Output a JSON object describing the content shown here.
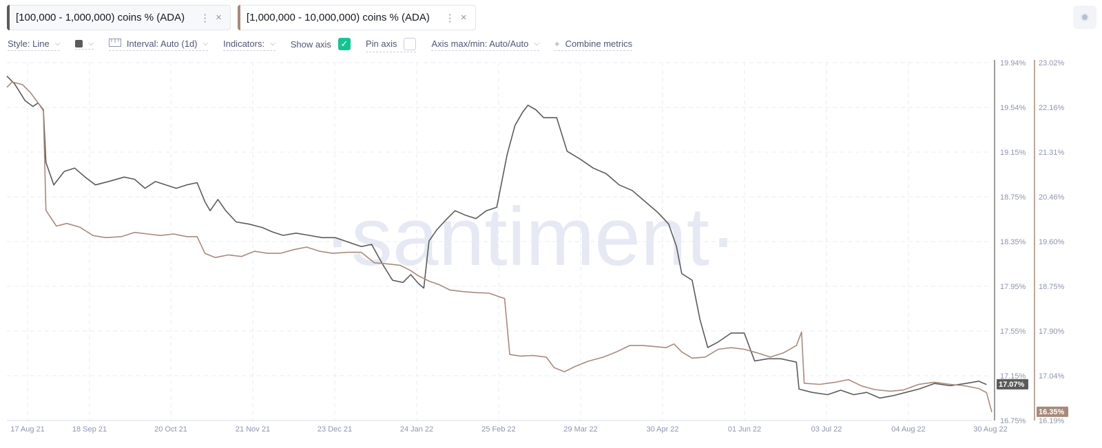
{
  "tabs": [
    {
      "label": "[100,000 - 1,000,000) coins % (ADA)",
      "color": "#5a5a5a"
    },
    {
      "label": "[1,000,000 - 10,000,000) coins % (ADA)",
      "color": "#a8897c"
    }
  ],
  "tab_icons": {
    "menu": "⋮",
    "close": "×"
  },
  "toolbar": {
    "style": "Style: Line",
    "interval": "Interval: Auto (1d)",
    "indicators": "Indicators:",
    "show_axis": "Show axis",
    "pin_axis": "Pin axis",
    "axis_minmax": "Axis max/min: Auto/Auto",
    "combine": "Combine metrics",
    "plus": "+",
    "chevron": "⌵",
    "check": "✓"
  },
  "watermark": "·santiment·",
  "colors": {
    "series1": "#5a5a5a",
    "series2": "#a8897c",
    "accent": "#14c393"
  },
  "chart_data": {
    "type": "line",
    "x_ticks": [
      "17 Aug 21",
      "18 Sep 21",
      "20 Oct 21",
      "21 Nov 21",
      "23 Dec 21",
      "24 Jan 22",
      "25 Feb 22",
      "29 Mar 22",
      "30 Apr 22",
      "01 Jun 22",
      "03 Jul 22",
      "04 Aug 22",
      "30 Aug 22"
    ],
    "x_range": [
      "2021-08-17",
      "2022-08-30"
    ],
    "axis1": {
      "ticks": [
        "19.94%",
        "19.54%",
        "19.15%",
        "18.75%",
        "18.35%",
        "17.95%",
        "17.55%",
        "17.15%",
        "16.75%"
      ],
      "min": 16.75,
      "max": 19.94
    },
    "axis2": {
      "ticks": [
        "23.02%",
        "22.16%",
        "21.31%",
        "20.46%",
        "19.60%",
        "18.75%",
        "17.90%",
        "17.04%",
        "16.19%"
      ],
      "min": 16.19,
      "max": 23.02
    },
    "last_labels": {
      "series1": "17.07%",
      "series2": "16.35%"
    },
    "series": [
      {
        "name": "[100,000 - 1,000,000) coins % (ADA)",
        "axis": 1,
        "points": [
          [
            "2021-08-17",
            19.82
          ],
          [
            "2021-08-20",
            19.75
          ],
          [
            "2021-08-24",
            19.6
          ],
          [
            "2021-08-27",
            19.55
          ],
          [
            "2021-08-29",
            19.58
          ],
          [
            "2021-08-31",
            19.52
          ],
          [
            "2021-09-01",
            19.05
          ],
          [
            "2021-09-04",
            18.85
          ],
          [
            "2021-09-08",
            18.97
          ],
          [
            "2021-09-12",
            19.0
          ],
          [
            "2021-09-16",
            18.92
          ],
          [
            "2021-09-20",
            18.85
          ],
          [
            "2021-09-25",
            18.88
          ],
          [
            "2021-10-01",
            18.92
          ],
          [
            "2021-10-05",
            18.9
          ],
          [
            "2021-10-09",
            18.82
          ],
          [
            "2021-10-13",
            18.88
          ],
          [
            "2021-10-17",
            18.85
          ],
          [
            "2021-10-21",
            18.82
          ],
          [
            "2021-10-25",
            18.85
          ],
          [
            "2021-10-29",
            18.87
          ],
          [
            "2021-11-01",
            18.7
          ],
          [
            "2021-11-03",
            18.62
          ],
          [
            "2021-11-06",
            18.72
          ],
          [
            "2021-11-09",
            18.62
          ],
          [
            "2021-11-13",
            18.52
          ],
          [
            "2021-11-18",
            18.5
          ],
          [
            "2021-11-23",
            18.47
          ],
          [
            "2021-11-27",
            18.43
          ],
          [
            "2021-12-01",
            18.4
          ],
          [
            "2021-12-06",
            18.42
          ],
          [
            "2021-12-11",
            18.4
          ],
          [
            "2021-12-16",
            18.38
          ],
          [
            "2021-12-21",
            18.38
          ],
          [
            "2021-12-26",
            18.34
          ],
          [
            "2021-12-31",
            18.3
          ],
          [
            "2022-01-04",
            18.32
          ],
          [
            "2022-01-08",
            18.15
          ],
          [
            "2022-01-12",
            18.0
          ],
          [
            "2022-01-16",
            17.98
          ],
          [
            "2022-01-19",
            18.05
          ],
          [
            "2022-01-22",
            17.97
          ],
          [
            "2022-01-24",
            17.93
          ],
          [
            "2022-01-26",
            18.35
          ],
          [
            "2022-01-29",
            18.45
          ],
          [
            "2022-02-02",
            18.55
          ],
          [
            "2022-02-05",
            18.62
          ],
          [
            "2022-02-09",
            18.58
          ],
          [
            "2022-02-13",
            18.55
          ],
          [
            "2022-02-17",
            18.62
          ],
          [
            "2022-02-21",
            18.65
          ],
          [
            "2022-02-25",
            19.12
          ],
          [
            "2022-02-28",
            19.38
          ],
          [
            "2022-03-03",
            19.5
          ],
          [
            "2022-03-05",
            19.56
          ],
          [
            "2022-03-08",
            19.52
          ],
          [
            "2022-03-11",
            19.45
          ],
          [
            "2022-03-16",
            19.45
          ],
          [
            "2022-03-20",
            19.15
          ],
          [
            "2022-03-25",
            19.08
          ],
          [
            "2022-03-30",
            19.0
          ],
          [
            "2022-04-04",
            18.95
          ],
          [
            "2022-04-09",
            18.85
          ],
          [
            "2022-04-14",
            18.8
          ],
          [
            "2022-04-19",
            18.7
          ],
          [
            "2022-04-24",
            18.6
          ],
          [
            "2022-04-28",
            18.5
          ],
          [
            "2022-05-01",
            18.3
          ],
          [
            "2022-05-03",
            18.06
          ],
          [
            "2022-05-07",
            18.0
          ],
          [
            "2022-05-10",
            17.65
          ],
          [
            "2022-05-13",
            17.4
          ],
          [
            "2022-05-17",
            17.45
          ],
          [
            "2022-05-22",
            17.53
          ],
          [
            "2022-05-27",
            17.53
          ],
          [
            "2022-05-31",
            17.28
          ],
          [
            "2022-06-05",
            17.3
          ],
          [
            "2022-06-10",
            17.3
          ],
          [
            "2022-06-16",
            17.27
          ],
          [
            "2022-06-17",
            17.03
          ],
          [
            "2022-06-22",
            17.0
          ],
          [
            "2022-06-28",
            16.98
          ],
          [
            "2022-07-03",
            17.02
          ],
          [
            "2022-07-08",
            16.98
          ],
          [
            "2022-07-13",
            17.0
          ],
          [
            "2022-07-18",
            16.95
          ],
          [
            "2022-07-23",
            16.97
          ],
          [
            "2022-07-28",
            17.0
          ],
          [
            "2022-08-02",
            17.03
          ],
          [
            "2022-08-08",
            17.08
          ],
          [
            "2022-08-14",
            17.06
          ],
          [
            "2022-08-20",
            17.08
          ],
          [
            "2022-08-25",
            17.1
          ],
          [
            "2022-08-28",
            17.07
          ]
        ]
      },
      {
        "name": "[1,000,000 - 10,000,000) coins % (ADA)",
        "axis": 2,
        "points": [
          [
            "2021-08-17",
            22.55
          ],
          [
            "2021-08-19",
            22.65
          ],
          [
            "2021-08-23",
            22.6
          ],
          [
            "2021-08-26",
            22.45
          ],
          [
            "2021-08-29",
            22.25
          ],
          [
            "2021-08-31",
            22.1
          ],
          [
            "2021-09-01",
            20.2
          ],
          [
            "2021-09-05",
            19.9
          ],
          [
            "2021-09-09",
            19.95
          ],
          [
            "2021-09-14",
            19.88
          ],
          [
            "2021-09-19",
            19.72
          ],
          [
            "2021-09-24",
            19.68
          ],
          [
            "2021-09-30",
            19.7
          ],
          [
            "2021-10-05",
            19.78
          ],
          [
            "2021-10-10",
            19.75
          ],
          [
            "2021-10-15",
            19.72
          ],
          [
            "2021-10-20",
            19.75
          ],
          [
            "2021-10-25",
            19.7
          ],
          [
            "2021-10-29",
            19.7
          ],
          [
            "2021-11-01",
            19.38
          ],
          [
            "2021-11-05",
            19.3
          ],
          [
            "2021-11-10",
            19.35
          ],
          [
            "2021-11-15",
            19.32
          ],
          [
            "2021-11-20",
            19.42
          ],
          [
            "2021-11-25",
            19.38
          ],
          [
            "2021-11-30",
            19.38
          ],
          [
            "2021-12-05",
            19.45
          ],
          [
            "2021-12-10",
            19.5
          ],
          [
            "2021-12-15",
            19.42
          ],
          [
            "2021-12-20",
            19.38
          ],
          [
            "2021-12-26",
            19.4
          ],
          [
            "2021-12-31",
            19.4
          ],
          [
            "2022-01-05",
            19.2
          ],
          [
            "2022-01-10",
            19.18
          ],
          [
            "2022-01-15",
            19.15
          ],
          [
            "2022-01-19",
            19.05
          ],
          [
            "2022-01-22",
            18.95
          ],
          [
            "2022-01-26",
            18.85
          ],
          [
            "2022-01-30",
            18.78
          ],
          [
            "2022-02-03",
            18.68
          ],
          [
            "2022-02-08",
            18.65
          ],
          [
            "2022-02-13",
            18.63
          ],
          [
            "2022-02-18",
            18.62
          ],
          [
            "2022-02-22",
            18.55
          ],
          [
            "2022-02-24",
            18.52
          ],
          [
            "2022-02-26",
            17.45
          ],
          [
            "2022-03-02",
            17.42
          ],
          [
            "2022-03-07",
            17.43
          ],
          [
            "2022-03-12",
            17.4
          ],
          [
            "2022-03-15",
            17.2
          ],
          [
            "2022-03-19",
            17.12
          ],
          [
            "2022-03-23",
            17.22
          ],
          [
            "2022-03-28",
            17.32
          ],
          [
            "2022-04-03",
            17.4
          ],
          [
            "2022-04-08",
            17.5
          ],
          [
            "2022-04-13",
            17.62
          ],
          [
            "2022-04-18",
            17.62
          ],
          [
            "2022-04-23",
            17.6
          ],
          [
            "2022-04-27",
            17.58
          ],
          [
            "2022-04-30",
            17.65
          ],
          [
            "2022-05-03",
            17.5
          ],
          [
            "2022-05-07",
            17.38
          ],
          [
            "2022-05-12",
            17.4
          ],
          [
            "2022-05-17",
            17.55
          ],
          [
            "2022-05-22",
            17.58
          ],
          [
            "2022-05-27",
            17.55
          ],
          [
            "2022-06-01",
            17.48
          ],
          [
            "2022-06-06",
            17.4
          ],
          [
            "2022-06-11",
            17.48
          ],
          [
            "2022-06-16",
            17.62
          ],
          [
            "2022-06-18",
            17.88
          ],
          [
            "2022-06-19",
            16.9
          ],
          [
            "2022-06-25",
            16.88
          ],
          [
            "2022-07-01",
            16.92
          ],
          [
            "2022-07-06",
            16.97
          ],
          [
            "2022-07-11",
            16.85
          ],
          [
            "2022-07-16",
            16.78
          ],
          [
            "2022-07-22",
            16.75
          ],
          [
            "2022-07-27",
            16.77
          ],
          [
            "2022-08-02",
            16.88
          ],
          [
            "2022-08-08",
            16.92
          ],
          [
            "2022-08-14",
            16.88
          ],
          [
            "2022-08-20",
            16.85
          ],
          [
            "2022-08-25",
            16.8
          ],
          [
            "2022-08-28",
            16.72
          ],
          [
            "2022-08-30",
            16.35
          ]
        ]
      }
    ]
  }
}
